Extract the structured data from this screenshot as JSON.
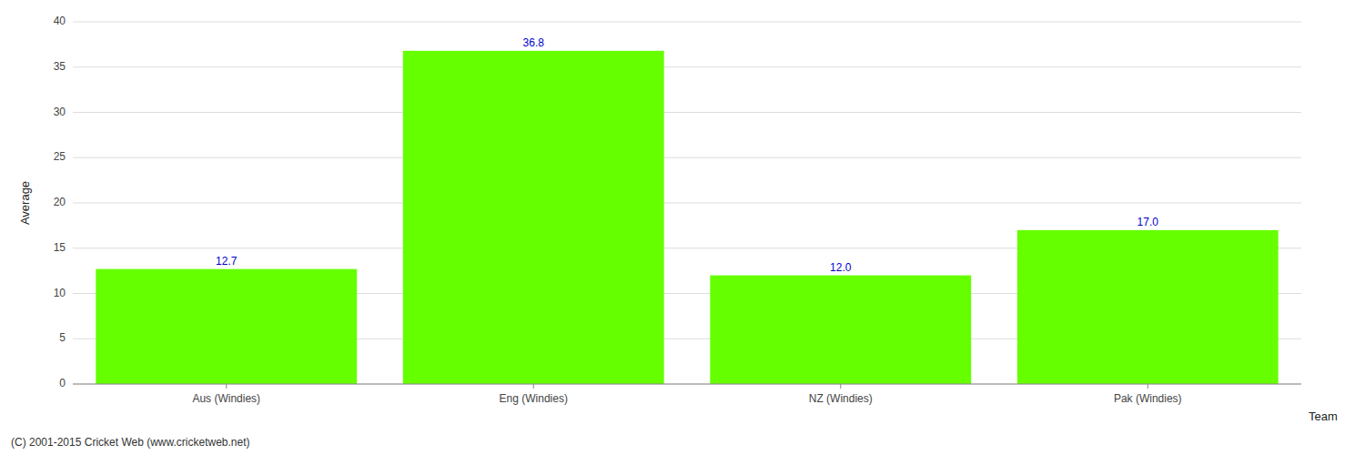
{
  "chart_data": {
    "type": "bar",
    "categories": [
      "Aus (Windies)",
      "Eng (Windies)",
      "NZ (Windies)",
      "Pak (Windies)"
    ],
    "values": [
      12.7,
      36.8,
      12.0,
      17.0
    ],
    "value_labels": [
      "12.7",
      "36.8",
      "12.0",
      "17.0"
    ],
    "data_labels": true,
    "color": "#66ff00",
    "xlabel": "Team",
    "ylabel": "Average",
    "ylim": [
      0,
      40
    ],
    "yticks": [
      0,
      5,
      10,
      15,
      20,
      25,
      30,
      35,
      40
    ],
    "grid": true,
    "annotations": [
      "(C) 2001-2015 Cricket Web (www.cricketweb.net)"
    ]
  }
}
